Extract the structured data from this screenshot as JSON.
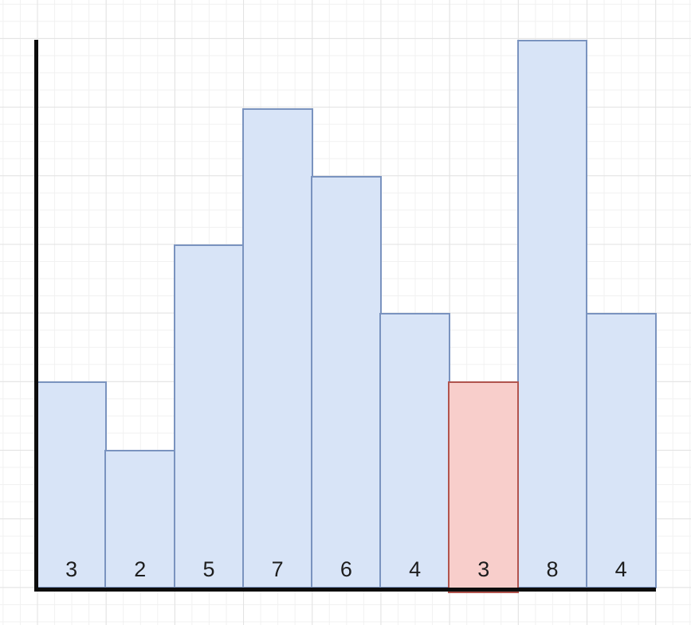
{
  "canvas": {
    "background_color": "#ffffff",
    "grid_visible": true,
    "grid_minor_color": "#f1f1f1",
    "grid_major_color": "#e2e2e2"
  },
  "chart_data": {
    "type": "bar",
    "title": "",
    "values": [
      3,
      2,
      5,
      7,
      6,
      4,
      3,
      8,
      4
    ],
    "bar_labels": [
      "3",
      "2",
      "5",
      "7",
      "6",
      "4",
      "3",
      "8",
      "4"
    ],
    "highlighted_index": 6,
    "ylim": [
      0,
      8
    ],
    "grid": "on",
    "legend": "none",
    "axes": {
      "y_axis_visible": true,
      "x_axis_visible": true,
      "tick_labels_visible": false
    },
    "colors": {
      "bar_fill": "#d8e4f7",
      "bar_border": "#7a93bf",
      "highlight_fill": "#f8cecb",
      "highlight_border": "#b1544e",
      "label_color": "#1d1d1d",
      "axis_color": "#0d0d0d"
    }
  }
}
